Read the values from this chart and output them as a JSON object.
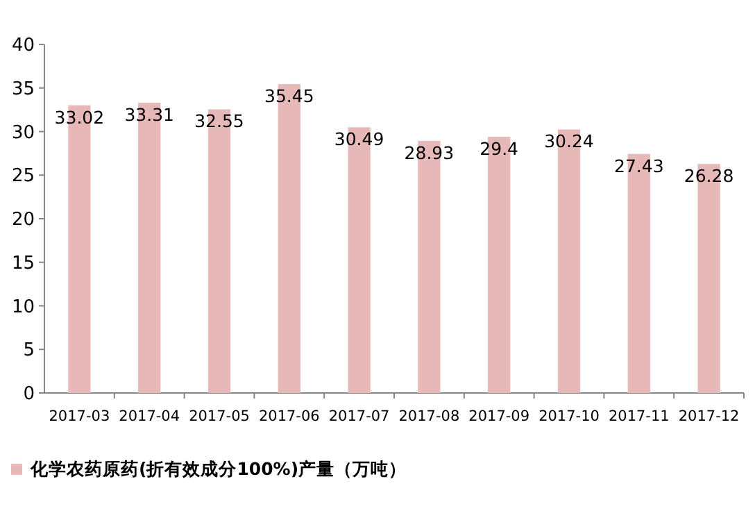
{
  "chart_data": {
    "type": "bar",
    "categories": [
      "2017-03",
      "2017-04",
      "2017-05",
      "2017-06",
      "2017-07",
      "2017-08",
      "2017-09",
      "2017-10",
      "2017-11",
      "2017-12"
    ],
    "series": [
      {
        "name": "化学农药原药(折有效成分100%)产量（万吨）",
        "color": "#e6b9b8",
        "values": [
          33.02,
          33.31,
          32.55,
          35.45,
          30.49,
          28.93,
          29.4,
          30.24,
          27.43,
          26.28
        ]
      }
    ],
    "ylim": [
      0,
      40
    ],
    "yticks": [
      0,
      5,
      10,
      15,
      20,
      25,
      30,
      35,
      40
    ],
    "data_labels": true,
    "legend": "bottom left",
    "grid": false
  }
}
